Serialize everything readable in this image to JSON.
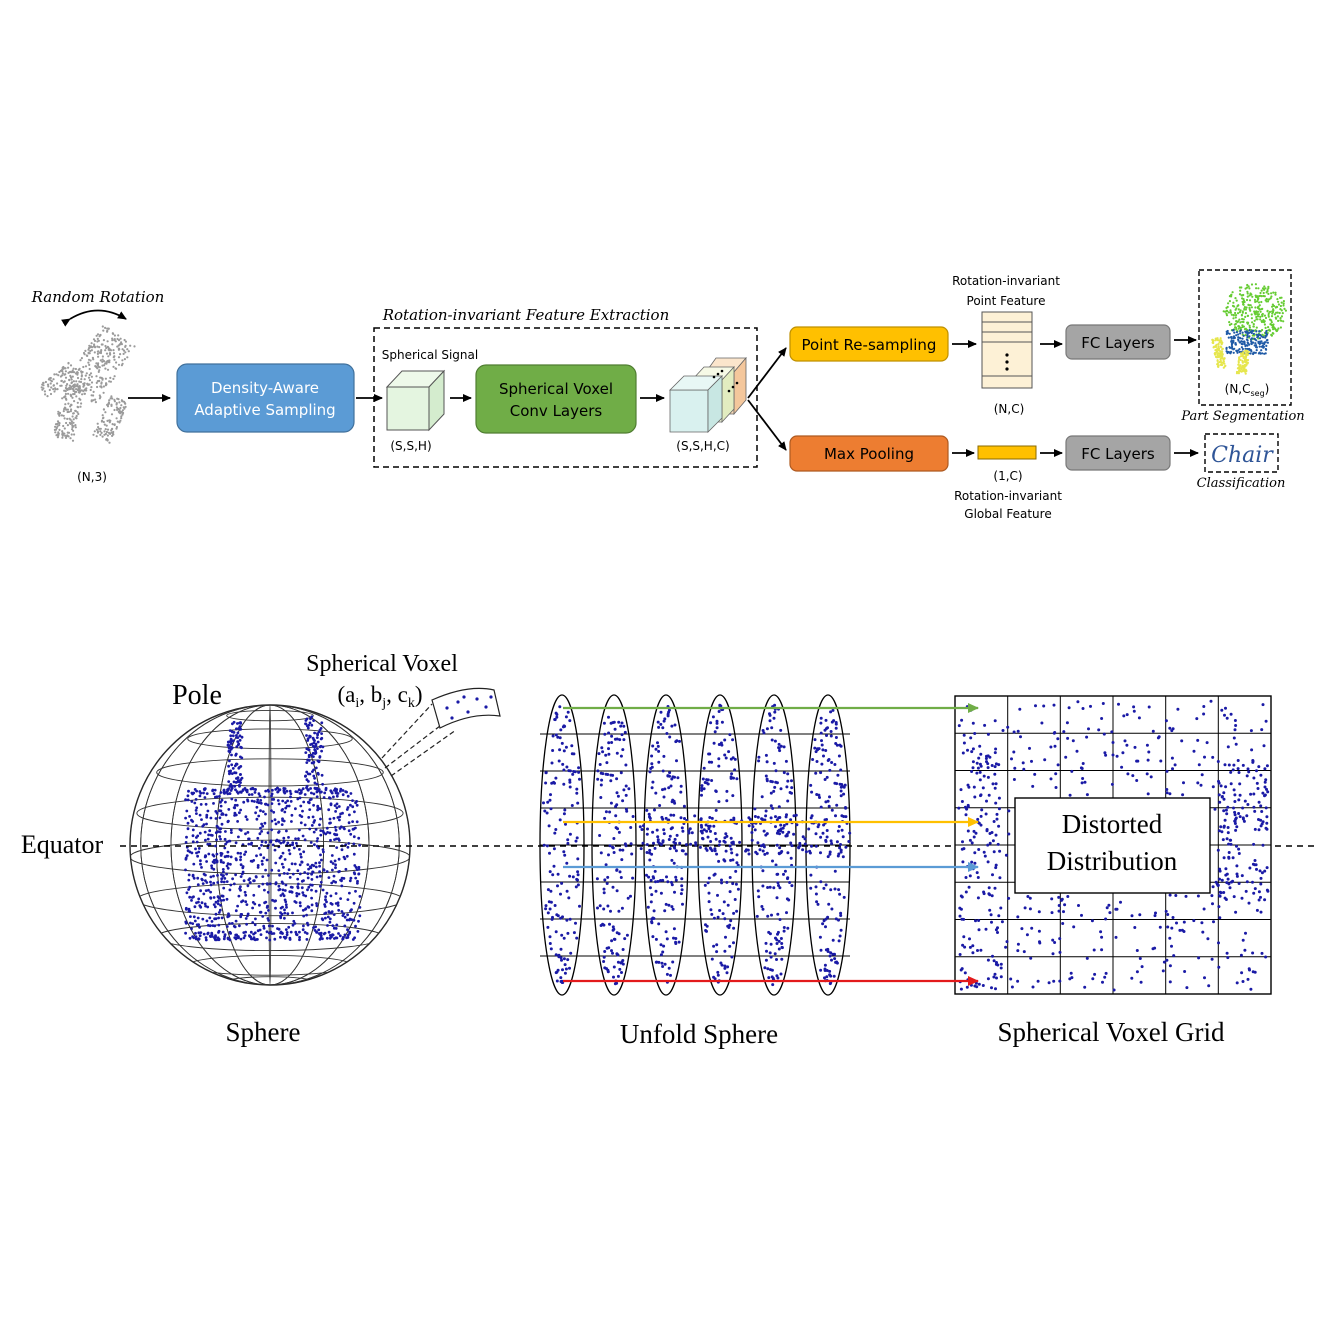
{
  "pipeline": {
    "random_rotation": "Random Rotation",
    "input_shape": "(N,3)",
    "sampling_line1": "Density-Aware",
    "sampling_line2": "Adaptive Sampling",
    "feature_extraction_title": "Rotation-invariant Feature Extraction",
    "spherical_signal": "Spherical Signal",
    "signal_shape": "(S,S,H)",
    "conv_line1": "Spherical Voxel",
    "conv_line2": "Conv Layers",
    "conv_out_shape": "(S,S,H,C)",
    "resampling": "Point Re-sampling",
    "maxpool": "Max Pooling",
    "point_feature_line1": "Rotation-invariant",
    "point_feature_line2": "Point Feature",
    "point_feature_shape": "(N,C)",
    "global_shape": "(1,C)",
    "global_feature_line1": "Rotation-invariant",
    "global_feature_line2": "Global Feature",
    "fc_top": "FC Layers",
    "fc_bottom": "FC Layers",
    "seg_shape_main": "(N,C",
    "seg_shape_sub": "seg",
    "seg_shape_close": ")",
    "part_segmentation": "Part Segmentation",
    "class_label": "Chair",
    "classification": "Classification"
  },
  "sphere_panel": {
    "pole": "Pole",
    "equator": "Equator",
    "voxel_title": "Spherical Voxel",
    "voxel_coords_open": "(a",
    "sub_i": "i",
    "comma_b": ", b",
    "sub_j": "j",
    "comma_c": ", c",
    "sub_k": "k",
    "voxel_coords_close": ")",
    "sphere_caption": "Sphere",
    "unfold_caption": "Unfold Sphere",
    "grid_caption": "Spherical Voxel Grid",
    "distorted_line1": "Distorted",
    "distorted_line2": "Distribution"
  },
  "colors": {
    "blue_box": "#5b9bd5",
    "green_box": "#70ad47",
    "yellow_box": "#ffc000",
    "orange_box": "#ed7d31",
    "grey_box": "#a5a5a5",
    "dots": "#1a1aa6",
    "arrow_green": "#70ad47",
    "arrow_yellow": "#ffc000",
    "arrow_blue": "#5b9bd5",
    "arrow_red": "#e31a1c"
  }
}
